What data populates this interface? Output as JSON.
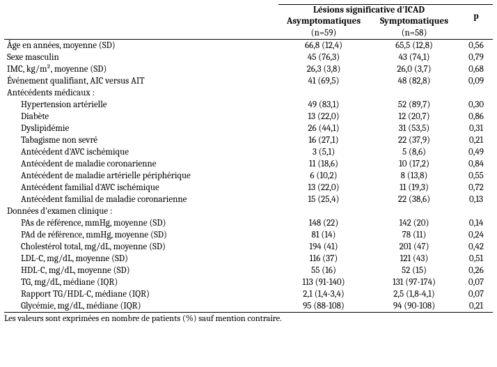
{
  "header": {
    "group_label": "Lésions significative d'ICAD",
    "col_asymp": "Asymptomatiques",
    "col_symp": "Symptomatiques",
    "col_p": "p",
    "n_asymp": "(n=59)",
    "n_symp": "(n=58)"
  },
  "rows": [
    {
      "label": "Âge en années, moyenne (SD)",
      "asymp": "66,8 (12,4)",
      "symp": "65,5 (12,8)",
      "p": "0,56"
    },
    {
      "label": "Sexe masculin",
      "asymp": "45 (76,3)",
      "symp": "43 (74,1)",
      "p": "0,79"
    },
    {
      "label": "IMC, kg/m², moyenne (SD)",
      "asymp": "26,3 (3,8)",
      "symp": "26,0 (3,7)",
      "p": "0,68"
    },
    {
      "label": "Événement qualifiant, AIC versus AIT",
      "asymp": "41 (69,5)",
      "symp": "48 (82,8)",
      "p": "0,09"
    }
  ],
  "section_med": "Antécédents médicaux :",
  "rows_med": [
    {
      "label": "Hypertension artérielle",
      "asymp": "49 (83,1)",
      "symp": "52 (89,7)",
      "p": "0,30"
    },
    {
      "label": "Diabète",
      "asymp": "13 (22,0)",
      "symp": "12 (20,7)",
      "p": "0,86"
    },
    {
      "label": "Dyslipidémie",
      "asymp": "26 (44,1)",
      "symp": "31 (53,5)",
      "p": "0,31"
    },
    {
      "label": "Tabagisme non sevré",
      "asymp": "16 (27,1)",
      "symp": "22 (37,9)",
      "p": "0,21"
    },
    {
      "label": "Antécédent d'AVC ischémique",
      "asymp": "3 (5,1)",
      "symp": "5 (8,6)",
      "p": "0,49"
    },
    {
      "label": "Antécédent de maladie coronarienne",
      "asymp": "11 (18,6)",
      "symp": "10 (17,2)",
      "p": "0,84"
    },
    {
      "label": "Antécédent de maladie artérielle périphérique",
      "asymp": "6 (10,2)",
      "symp": "8 (13,8)",
      "p": "0,55"
    },
    {
      "label": "Antécédent familial d'AVC ischémique",
      "asymp": "13 (22,0)",
      "symp": "11 (19,3)",
      "p": "0,72"
    },
    {
      "label": "Antécédent familial de maladie coronarienne",
      "asymp": "15 (25,4)",
      "symp": "22 (38,6)",
      "p": "0,13"
    }
  ],
  "section_clin": "Données d'examen clinique :",
  "rows_clin": [
    {
      "label": "PAs de référence, mmHg, moyenne (SD)",
      "asymp": "148 (22)",
      "symp": "142 (20)",
      "p": "0,14"
    },
    {
      "label": "PAd de référence, mmHg, moyenne (SD)",
      "asymp": "81 (14)",
      "symp": "78 (11)",
      "p": "0,24"
    },
    {
      "label": "Cholestérol total, mg/dL, moyenne (SD)",
      "asymp": "194 (41)",
      "symp": "201 (47)",
      "p": "0,42"
    },
    {
      "label": "LDL-C, mg/dL, moyenne (SD)",
      "asymp": "116 (37)",
      "symp": "121 (43)",
      "p": "0,51"
    },
    {
      "label": "HDL-C, mg/dL, moyenne (SD)",
      "asymp": "55 (16)",
      "symp": "52 (15)",
      "p": "0,26"
    },
    {
      "label": "TG, mg/dL, médiane (IQR)",
      "asymp": "113 (91-140)",
      "symp": "131 (97-174)",
      "p": "0,07"
    },
    {
      "label": "Rapport TG/HDL-C, médiane (IQR)",
      "asymp": "2,1 (1,4-3,4)",
      "symp": "2,5 (1,8-4,1)",
      "p": "0,07"
    },
    {
      "label": "Glycémie, mg/dL, médiane (IQR)",
      "asymp": "95 (88-108)",
      "symp": "94 (90-108)",
      "p": "0,21"
    }
  ],
  "footnote": "Les valeurs sont exprimées en nombre de patients (%) sauf mention contraire."
}
